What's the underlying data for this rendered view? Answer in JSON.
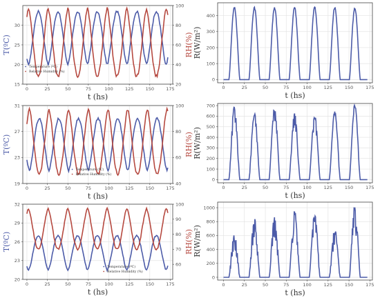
{
  "chart_data": [
    {
      "type": "line",
      "panel": "row1-left",
      "xlabel": "t (hs)",
      "ylabel_left": "T(ºC)",
      "ylabel_right": "RH(%)",
      "xlim": [
        -5,
        178
      ],
      "ylim_left": [
        15,
        35
      ],
      "ylim_right": [
        20,
        100
      ],
      "xticks": [
        "0",
        "25",
        "50",
        "75",
        "100",
        "125",
        "150",
        "175"
      ],
      "yticks_left": [
        "15",
        "20",
        "25",
        "30"
      ],
      "yticks_right": [
        "20",
        "40",
        "60",
        "80",
        "100"
      ],
      "legend": "lower-left",
      "grid": true,
      "series": [
        {
          "name": "Temperature (ºC)",
          "axis": "left",
          "color": "#4c5ba8",
          "kind": "diurnal",
          "base": 20,
          "peak": 33.5,
          "phase_peak": 14,
          "days": 7
        },
        {
          "name": "Relative Humidity (%)",
          "axis": "right",
          "color": "#b5483f",
          "kind": "diurnal",
          "base": 97,
          "peak": 28,
          "phase_peak": 14,
          "days": 7
        }
      ]
    },
    {
      "type": "line",
      "panel": "row1-right",
      "xlabel": "t (hs)",
      "ylabel": "R(W/m²)",
      "xlim": [
        -7,
        178
      ],
      "ylim": [
        -20,
        480
      ],
      "xticks": [
        "0",
        "25",
        "50",
        "75",
        "100",
        "125",
        "150",
        "175"
      ],
      "yticks": [
        "0",
        "100",
        "200",
        "300",
        "400"
      ],
      "grid": true,
      "series": [
        {
          "color": "#4c5ba8",
          "kind": "solar",
          "peaks": [
            455,
            455,
            455,
            455,
            455,
            455,
            455
          ],
          "noise": 0.02,
          "days": 7
        }
      ]
    },
    {
      "type": "line",
      "panel": "row2-left",
      "xlabel": "t (hs)",
      "ylabel_left": "T(ºC)",
      "ylabel_right": "RH(%)",
      "xlim": [
        -5,
        178
      ],
      "ylim_left": [
        19,
        31
      ],
      "ylim_right": [
        40,
        100
      ],
      "xticks": [
        "0",
        "25",
        "50",
        "75",
        "100",
        "125",
        "150",
        "175"
      ],
      "yticks_left": [
        "19",
        "23",
        "27",
        "31"
      ],
      "yticks_right": [
        "40",
        "60",
        "80",
        "100"
      ],
      "legend": "lower-center",
      "grid": true,
      "series": [
        {
          "name": "Temperature (ºC)",
          "axis": "left",
          "color": "#4c5ba8",
          "kind": "diurnal",
          "base": 21,
          "peak": 29,
          "phase_peak": 15,
          "days": 7
        },
        {
          "name": "Relative Humidity (%)",
          "axis": "right",
          "color": "#b5483f",
          "kind": "diurnal",
          "base": 97,
          "peak": 47,
          "phase_peak": 15,
          "days": 7
        }
      ]
    },
    {
      "type": "line",
      "panel": "row2-right",
      "xlabel": "t (hs)",
      "ylabel": "R(W/m²)",
      "xlim": [
        -7,
        178
      ],
      "ylim": [
        -30,
        720
      ],
      "xticks": [
        "0",
        "25",
        "50",
        "75",
        "100",
        "125",
        "150",
        "175"
      ],
      "yticks": [
        "0",
        "100",
        "200",
        "300",
        "400",
        "500",
        "600",
        "700"
      ],
      "grid": true,
      "series": [
        {
          "color": "#4c5ba8",
          "kind": "solar",
          "peaks": [
            700,
            630,
            690,
            640,
            610,
            650,
            720
          ],
          "noise": 0.14,
          "days": 7
        }
      ]
    },
    {
      "type": "line",
      "panel": "row3-left",
      "xlabel": "t (hs)",
      "ylabel_left": "T(ºC)",
      "ylabel_right": "RH(%)",
      "xlim": [
        -5,
        178
      ],
      "ylim_left": [
        20,
        32
      ],
      "ylim_right": [
        50,
        100
      ],
      "xticks": [
        "0",
        "25",
        "50",
        "75",
        "100",
        "125",
        "150",
        "175"
      ],
      "yticks_left": [
        "20",
        "23",
        "26",
        "29",
        "32"
      ],
      "yticks_right": [
        "60",
        "70",
        "80",
        "90",
        "100"
      ],
      "legend": "lower-right",
      "grid": true,
      "series": [
        {
          "name": "Temperature (ºC)",
          "axis": "left",
          "color": "#4c5ba8",
          "kind": "diurnal",
          "base": 21.5,
          "peak": 27,
          "phase_peak": 14,
          "days": 7
        },
        {
          "name": "Relative Humidity (%)",
          "axis": "right",
          "color": "#b5483f",
          "kind": "diurnal",
          "base": 97,
          "peak": 70,
          "phase_peak": 14,
          "days": 7
        }
      ]
    },
    {
      "type": "line",
      "panel": "row3-right",
      "xlabel": "t (hs)",
      "ylabel": "R(W/m²)",
      "xlim": [
        -7,
        178
      ],
      "ylim": [
        -40,
        1080
      ],
      "xticks": [
        "0",
        "25",
        "50",
        "75",
        "100",
        "125",
        "150",
        "175"
      ],
      "yticks": [
        "0",
        "200",
        "400",
        "600",
        "800",
        "1000"
      ],
      "grid": true,
      "series": [
        {
          "color": "#4c5ba8",
          "kind": "solar",
          "peaks": [
            650,
            860,
            900,
            980,
            930,
            700,
            1070
          ],
          "noise": 0.25,
          "days": 7
        }
      ]
    }
  ]
}
